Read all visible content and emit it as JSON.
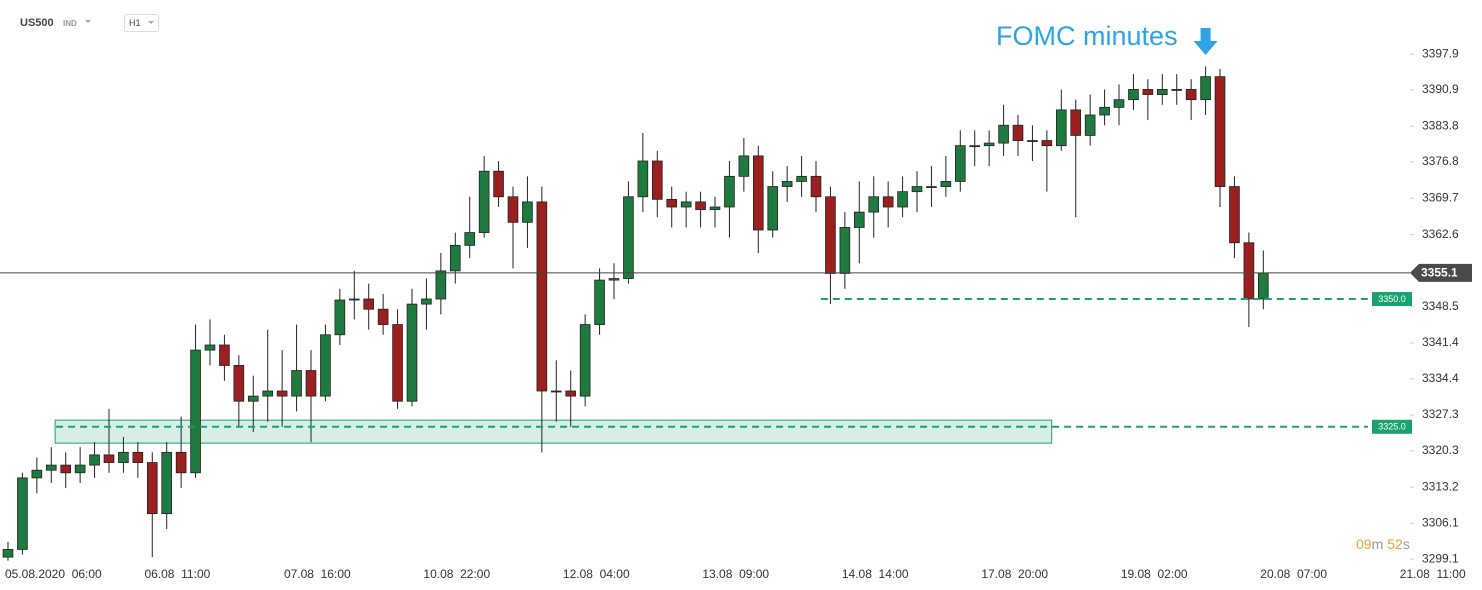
{
  "header": {
    "symbol": "US500",
    "badge": "IND",
    "timeframe": "H1"
  },
  "chart_data": {
    "type": "candlestick",
    "annotation": {
      "text": "FOMC minutes",
      "x": 249
    },
    "xlim": [
      -1.66,
      291.5
    ],
    "xticks": [
      {
        "value": 0,
        "label": "05.08.2020  06:00"
      },
      {
        "value": 29,
        "label": "06.08  11:00"
      },
      {
        "value": 58,
        "label": "07.08  16:00"
      },
      {
        "value": 87,
        "label": "10.08  22:00"
      },
      {
        "value": 116,
        "label": "12.08  04:00"
      },
      {
        "value": 145,
        "label": "13.08  09:00"
      },
      {
        "value": 174,
        "label": "14.08  14:00"
      },
      {
        "value": 203,
        "label": "17.08  20:00"
      },
      {
        "value": 232,
        "label": "19.08  02:00"
      },
      {
        "value": 261,
        "label": "20.08  07:00"
      },
      {
        "value": 290,
        "label": "21.08  11:00"
      }
    ],
    "ylim": [
      3296.0,
      3408.5
    ],
    "yticks": [
      3397.9,
      3390.9,
      3383.8,
      3376.8,
      3369.7,
      3362.6,
      3348.5,
      3341.4,
      3334.4,
      3327.3,
      3320.3,
      3313.2,
      3306.1,
      3299.1
    ],
    "up_color": "#1f7a3f",
    "down_color": "#9c1f1f",
    "x": [
      0,
      3,
      6,
      9,
      12,
      15,
      18,
      21,
      24,
      27,
      30,
      33,
      36,
      39,
      42,
      45,
      48,
      51,
      54,
      57,
      60,
      63,
      66,
      69,
      72,
      75,
      78,
      81,
      84,
      87,
      90,
      93,
      96,
      99,
      102,
      105,
      108,
      111,
      114,
      117,
      120,
      123,
      126,
      129,
      132,
      135,
      138,
      141,
      144,
      147,
      150,
      153,
      156,
      159,
      162,
      165,
      168,
      171,
      174,
      177,
      180,
      183,
      186,
      189,
      192,
      195,
      198,
      201,
      204,
      207,
      210,
      213,
      216,
      219,
      222,
      225,
      228,
      231,
      234,
      237,
      240,
      243,
      246,
      249,
      252,
      255,
      258,
      261
    ],
    "open": [
      3299.5,
      3301,
      3315,
      3316.5,
      3317.5,
      3316,
      3317.5,
      3319.5,
      3318,
      3320,
      3318,
      3308,
      3320,
      3316,
      3340,
      3341,
      3337,
      3330,
      3331,
      3332,
      3331,
      3336,
      3331,
      3343,
      3349.8,
      3350,
      3348,
      3345,
      3330,
      3349,
      3350,
      3355.5,
      3360.5,
      3363,
      3375,
      3370,
      3365,
      3369,
      3332,
      3332,
      3331,
      3345,
      3353.7,
      3354,
      3370,
      3377,
      3369.5,
      3368,
      3369,
      3367.5,
      3368,
      3374,
      3378,
      3363.5,
      3372,
      3373,
      3374,
      3370,
      3355,
      3364,
      3367,
      3370,
      3368,
      3371,
      3372,
      3372,
      3373,
      3380,
      3380,
      3380.5,
      3384,
      3381,
      3381,
      3380,
      3387,
      3382,
      3386,
      3387.5,
      3389,
      3391,
      3390,
      3391,
      3391,
      3389,
      3393.5,
      3372,
      3361,
      3350
    ],
    "high": [
      3302.5,
      3316,
      3319,
      3321,
      3320,
      3321,
      3322,
      3328.5,
      3323,
      3322,
      3320,
      3322,
      3327,
      3345,
      3346,
      3343,
      3339,
      3335,
      3344,
      3340,
      3345,
      3340,
      3345,
      3352,
      3355.5,
      3353,
      3351,
      3348,
      3352,
      3354,
      3359,
      3363,
      3370,
      3378,
      3377,
      3372,
      3374,
      3372,
      3338,
      3336,
      3347,
      3356,
      3357,
      3373,
      3382.5,
      3379,
      3372,
      3371,
      3371,
      3370,
      3377,
      3381.5,
      3380,
      3375,
      3376,
      3378,
      3377,
      3372,
      3367,
      3373,
      3374,
      3373,
      3374,
      3375,
      3376,
      3378,
      3383,
      3383,
      3383,
      3388,
      3386,
      3384,
      3383,
      3391,
      3389,
      3390,
      3391,
      3392,
      3394,
      3393,
      3394,
      3394,
      3393,
      3395.5,
      3395,
      3374,
      3363,
      3359.5
    ],
    "low": [
      3298.8,
      3300,
      3312,
      3314,
      3313,
      3314,
      3315,
      3316,
      3316,
      3315,
      3299.5,
      3305,
      3313,
      3315,
      3337,
      3334,
      3325,
      3324,
      3326,
      3325,
      3328,
      3322,
      3330,
      3341,
      3346,
      3344,
      3343,
      3328.5,
      3329,
      3344,
      3347,
      3353,
      3358,
      3362,
      3368,
      3356,
      3360,
      3320,
      3326,
      3325,
      3329,
      3343,
      3350,
      3353,
      3367,
      3366,
      3364,
      3364,
      3364,
      3364,
      3362,
      3371,
      3359,
      3362,
      3369,
      3370,
      3367,
      3349,
      3352,
      3357,
      3362,
      3364,
      3366,
      3367,
      3368,
      3370,
      3371,
      3376,
      3376,
      3378,
      3378,
      3377,
      3371,
      3379,
      3366,
      3380,
      3384,
      3384,
      3387,
      3385,
      3388,
      3388,
      3385,
      3386,
      3368,
      3358,
      3344.5,
      3348
    ],
    "close": [
      3301,
      3315,
      3316.5,
      3317.5,
      3316,
      3317.5,
      3319.5,
      3318,
      3320,
      3318,
      3308,
      3320,
      3316,
      3340,
      3341,
      3337,
      3330,
      3331,
      3332,
      3331,
      3336,
      3331,
      3343,
      3349.8,
      3350,
      3348,
      3345,
      3330,
      3349,
      3350,
      3355.5,
      3360.5,
      3363,
      3375,
      3370,
      3365,
      3369,
      3332,
      3332,
      3331,
      3345,
      3353.7,
      3354,
      3370,
      3377,
      3369.5,
      3368,
      3369,
      3367.5,
      3368,
      3374,
      3378,
      3363.5,
      3372,
      3373,
      3374,
      3370,
      3355,
      3364,
      3367,
      3370,
      3368,
      3371,
      3372,
      3372,
      3373,
      3380,
      3380,
      3380.5,
      3384,
      3381,
      3381,
      3380,
      3387,
      3382,
      3386,
      3387.5,
      3389,
      3391,
      3390,
      3391,
      3391,
      3389,
      3393.5,
      3372,
      3361,
      3350,
      3355.1
    ],
    "current_price": 3355.1,
    "zone": {
      "x": [
        9.8,
        217
      ],
      "y": [
        3321.8,
        3326.3
      ],
      "color": "#1aa36f"
    },
    "levels": [
      {
        "value": 3350.0,
        "label": "3350.0",
        "x_start": 169
      },
      {
        "value": 3325.0,
        "label": "3325.0",
        "x_start": 10
      }
    ],
    "countdown": [
      "09",
      "m",
      "52",
      "s"
    ]
  }
}
